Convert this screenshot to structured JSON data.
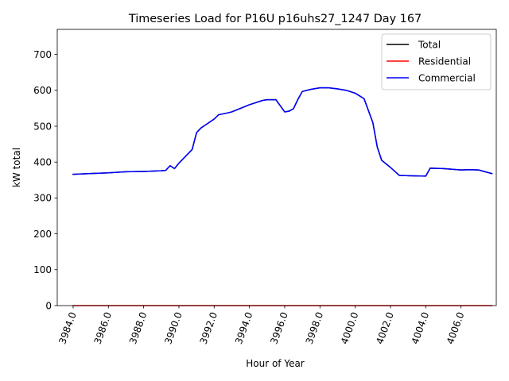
{
  "chart_data": {
    "type": "line",
    "title": "Timeseries Load for P16U p16uhs27_1247  Day 167",
    "xlabel": "Hour of Year",
    "ylabel": "kW total",
    "xlim": [
      3983.1,
      4008.0
    ],
    "ylim": [
      0,
      770
    ],
    "xticks": [
      3984,
      3986,
      3988,
      3990,
      3992,
      3994,
      3996,
      3998,
      4000,
      4002,
      4004,
      4006
    ],
    "xtick_labels": [
      "3984.0",
      "3986.0",
      "3988.0",
      "3990.0",
      "3992.0",
      "3994.0",
      "3996.0",
      "3998.0",
      "4000.0",
      "4002.0",
      "4004.0",
      "4006.0"
    ],
    "yticks": [
      0,
      100,
      200,
      300,
      400,
      500,
      600,
      700
    ],
    "ytick_labels": [
      "0",
      "100",
      "200",
      "300",
      "400",
      "500",
      "600",
      "700"
    ],
    "legend_position": "top-right",
    "series": [
      {
        "name": "Total",
        "color": "#000000",
        "points": [
          [
            3984.0,
            366
          ],
          [
            3985.0,
            368
          ],
          [
            3986.0,
            370
          ],
          [
            3987.0,
            373
          ],
          [
            3988.0,
            374
          ],
          [
            3989.0,
            376
          ],
          [
            3989.25,
            377
          ],
          [
            3989.5,
            390
          ],
          [
            3989.75,
            382
          ],
          [
            3990.0,
            397
          ],
          [
            3990.75,
            435
          ],
          [
            3991.0,
            482
          ],
          [
            3991.25,
            495
          ],
          [
            3992.0,
            520
          ],
          [
            3992.25,
            532
          ],
          [
            3992.75,
            537
          ],
          [
            3993.0,
            540
          ],
          [
            3994.0,
            560
          ],
          [
            3994.75,
            572
          ],
          [
            3995.0,
            574
          ],
          [
            3995.5,
            574
          ],
          [
            3996.0,
            540
          ],
          [
            3996.25,
            542
          ],
          [
            3996.5,
            549
          ],
          [
            3996.75,
            575
          ],
          [
            3997.0,
            597
          ],
          [
            3997.5,
            603
          ],
          [
            3998.0,
            607
          ],
          [
            3998.5,
            607
          ],
          [
            3999.0,
            604
          ],
          [
            3999.5,
            600
          ],
          [
            4000.0,
            592
          ],
          [
            4000.5,
            577
          ],
          [
            4001.0,
            510
          ],
          [
            4001.25,
            442
          ],
          [
            4001.5,
            405
          ],
          [
            4002.0,
            385
          ],
          [
            4002.5,
            363
          ],
          [
            4003.0,
            362
          ],
          [
            4004.0,
            361
          ],
          [
            4004.25,
            383
          ],
          [
            4005.0,
            382
          ],
          [
            4006.0,
            378
          ],
          [
            4006.5,
            379
          ],
          [
            4007.0,
            378
          ],
          [
            4007.75,
            368
          ]
        ]
      },
      {
        "name": "Residential",
        "color": "#ff0000",
        "points": [
          [
            3984.0,
            0
          ],
          [
            4007.75,
            0
          ]
        ]
      },
      {
        "name": "Commercial",
        "color": "#0000ff",
        "points": [
          [
            3984.0,
            366
          ],
          [
            3985.0,
            368
          ],
          [
            3986.0,
            370
          ],
          [
            3987.0,
            373
          ],
          [
            3988.0,
            374
          ],
          [
            3989.0,
            376
          ],
          [
            3989.25,
            377
          ],
          [
            3989.5,
            390
          ],
          [
            3989.75,
            382
          ],
          [
            3990.0,
            397
          ],
          [
            3990.75,
            435
          ],
          [
            3991.0,
            482
          ],
          [
            3991.25,
            495
          ],
          [
            3992.0,
            520
          ],
          [
            3992.25,
            532
          ],
          [
            3992.75,
            537
          ],
          [
            3993.0,
            540
          ],
          [
            3994.0,
            560
          ],
          [
            3994.75,
            572
          ],
          [
            3995.0,
            574
          ],
          [
            3995.5,
            574
          ],
          [
            3996.0,
            540
          ],
          [
            3996.25,
            542
          ],
          [
            3996.5,
            549
          ],
          [
            3996.75,
            575
          ],
          [
            3997.0,
            597
          ],
          [
            3997.5,
            603
          ],
          [
            3998.0,
            607
          ],
          [
            3998.5,
            607
          ],
          [
            3999.0,
            604
          ],
          [
            3999.5,
            600
          ],
          [
            4000.0,
            592
          ],
          [
            4000.5,
            577
          ],
          [
            4001.0,
            510
          ],
          [
            4001.25,
            442
          ],
          [
            4001.5,
            405
          ],
          [
            4002.0,
            385
          ],
          [
            4002.5,
            363
          ],
          [
            4003.0,
            362
          ],
          [
            4004.0,
            361
          ],
          [
            4004.25,
            383
          ],
          [
            4005.0,
            382
          ],
          [
            4006.0,
            378
          ],
          [
            4006.5,
            379
          ],
          [
            4007.0,
            378
          ],
          [
            4007.75,
            368
          ]
        ]
      }
    ]
  }
}
